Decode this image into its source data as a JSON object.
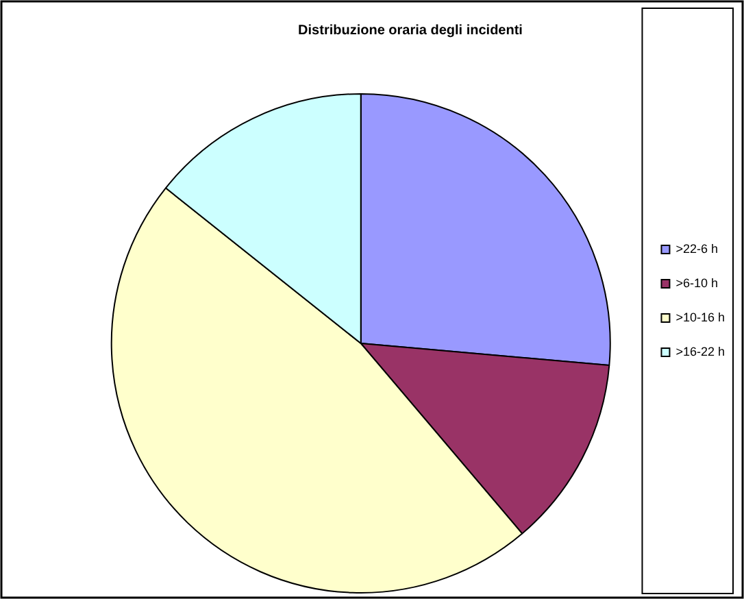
{
  "chart_data": {
    "type": "pie",
    "title": "Distribuzione oraria degli incidenti",
    "categories": [
      ">22-6 h",
      ">6-10 h",
      ">10-16 h",
      ">16-22 h"
    ],
    "values": [
      26.4,
      12.4,
      46.9,
      14.3
    ],
    "colors": [
      "#9999ff",
      "#993366",
      "#ffffcc",
      "#ccffff"
    ],
    "legend": "right"
  }
}
